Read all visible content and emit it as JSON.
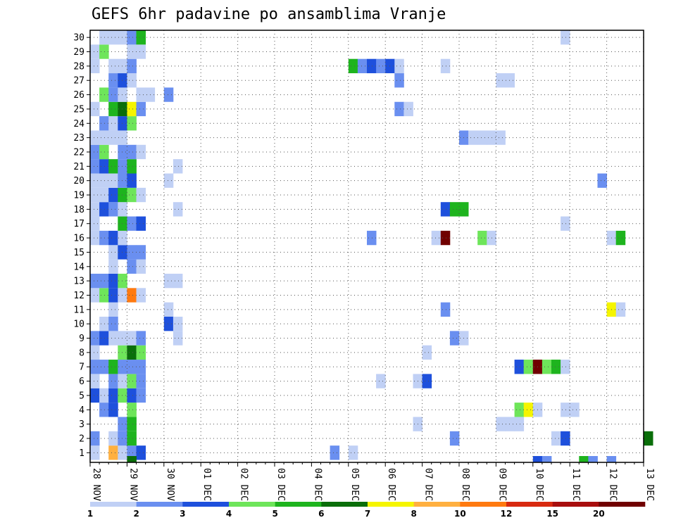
{
  "chart_data": {
    "type": "heatmap",
    "title": "GEFS 6hr padavine po ansamblima Vranje",
    "xlabel": "",
    "ylabel": "",
    "time_step_hours": 6,
    "x_tick_labels": [
      "28 NOV",
      "29 NOV",
      "30 NOV",
      "01 DEC",
      "02 DEC",
      "03 DEC",
      "04 DEC",
      "05 DEC",
      "06 DEC",
      "07 DEC",
      "08 DEC",
      "09 DEC",
      "10 DEC",
      "11 DEC",
      "12 DEC",
      "13 DEC"
    ],
    "x_range_steps": [
      0,
      60
    ],
    "y_range_members": [
      1,
      30
    ],
    "y_tick_labels": [
      "1",
      "2",
      "3",
      "4",
      "5",
      "6",
      "7",
      "8",
      "9",
      "10",
      "11",
      "12",
      "13",
      "14",
      "15",
      "16",
      "17",
      "18",
      "19",
      "20",
      "21",
      "22",
      "23",
      "24",
      "25",
      "26",
      "27",
      "28",
      "29",
      "30"
    ],
    "legend": {
      "colors": [
        "#c0d0f5",
        "#6a8ff0",
        "#1e50dc",
        "#6ee55a",
        "#1eb41e",
        "#0a6e0a",
        "#f5f500",
        "#ffb040",
        "#ff7a10",
        "#d82a10",
        "#a80e0e",
        "#700000"
      ],
      "labels": [
        "1",
        "2",
        "3",
        "4",
        "5",
        "6",
        "7",
        "8",
        "10",
        "12",
        "15",
        "20"
      ]
    },
    "cells": [
      {
        "m": 1,
        "cells": [
          [
            0,
            1
          ],
          [
            2,
            8
          ],
          [
            3,
            1
          ],
          [
            4,
            2
          ],
          [
            5,
            3
          ],
          [
            26,
            2
          ],
          [
            28,
            1
          ]
        ]
      },
      {
        "m": 2,
        "cells": [
          [
            0,
            2
          ],
          [
            2,
            1
          ],
          [
            3,
            2
          ],
          [
            4,
            5
          ],
          [
            39,
            2
          ],
          [
            50,
            1
          ],
          [
            51,
            3
          ],
          [
            60,
            6
          ]
        ]
      },
      {
        "m": 3,
        "cells": [
          [
            3,
            2
          ],
          [
            4,
            5
          ],
          [
            35,
            1
          ],
          [
            44,
            1
          ],
          [
            45,
            1
          ],
          [
            46,
            1
          ]
        ]
      },
      {
        "m": 4,
        "cells": [
          [
            1,
            2
          ],
          [
            2,
            3
          ],
          [
            4,
            4
          ],
          [
            46,
            4
          ],
          [
            47,
            7
          ],
          [
            48,
            1
          ],
          [
            51,
            1
          ],
          [
            52,
            1
          ]
        ]
      },
      {
        "m": 5,
        "cells": [
          [
            0,
            3
          ],
          [
            1,
            1
          ],
          [
            2,
            3
          ],
          [
            3,
            4
          ],
          [
            4,
            3
          ],
          [
            5,
            2
          ]
        ]
      },
      {
        "m": 6,
        "cells": [
          [
            0,
            1
          ],
          [
            2,
            2
          ],
          [
            3,
            1
          ],
          [
            4,
            4
          ],
          [
            5,
            2
          ],
          [
            31,
            1
          ],
          [
            35,
            1
          ],
          [
            36,
            3
          ]
        ]
      },
      {
        "m": 7,
        "cells": [
          [
            0,
            2
          ],
          [
            1,
            2
          ],
          [
            2,
            5
          ],
          [
            3,
            2
          ],
          [
            4,
            2
          ],
          [
            5,
            2
          ],
          [
            46,
            3
          ],
          [
            47,
            4
          ],
          [
            48,
            12
          ],
          [
            49,
            4
          ],
          [
            50,
            5
          ],
          [
            51,
            1
          ]
        ]
      },
      {
        "m": 8,
        "cells": [
          [
            0,
            1
          ],
          [
            3,
            4
          ],
          [
            4,
            6
          ],
          [
            5,
            4
          ],
          [
            36,
            1
          ]
        ]
      },
      {
        "m": 9,
        "cells": [
          [
            0,
            2
          ],
          [
            1,
            3
          ],
          [
            2,
            1
          ],
          [
            3,
            1
          ],
          [
            4,
            1
          ],
          [
            5,
            2
          ],
          [
            9,
            1
          ],
          [
            39,
            2
          ],
          [
            40,
            1
          ]
        ]
      },
      {
        "m": 10,
        "cells": [
          [
            1,
            1
          ],
          [
            2,
            2
          ],
          [
            8,
            3
          ],
          [
            9,
            1
          ]
        ]
      },
      {
        "m": 11,
        "cells": [
          [
            2,
            1
          ],
          [
            8,
            1
          ],
          [
            38,
            2
          ],
          [
            56,
            7
          ],
          [
            57,
            1
          ]
        ]
      },
      {
        "m": 12,
        "cells": [
          [
            0,
            1
          ],
          [
            1,
            4
          ],
          [
            2,
            3
          ],
          [
            3,
            1
          ],
          [
            4,
            9
          ],
          [
            5,
            1
          ]
        ]
      },
      {
        "m": 13,
        "cells": [
          [
            0,
            2
          ],
          [
            1,
            2
          ],
          [
            2,
            3
          ],
          [
            3,
            4
          ],
          [
            8,
            1
          ],
          [
            9,
            1
          ]
        ]
      },
      {
        "m": 14,
        "cells": [
          [
            2,
            1
          ],
          [
            4,
            2
          ],
          [
            5,
            1
          ]
        ]
      },
      {
        "m": 15,
        "cells": [
          [
            2,
            1
          ],
          [
            3,
            3
          ],
          [
            4,
            2
          ],
          [
            5,
            2
          ]
        ]
      },
      {
        "m": 16,
        "cells": [
          [
            0,
            1
          ],
          [
            1,
            2
          ],
          [
            2,
            3
          ],
          [
            3,
            1
          ],
          [
            30,
            2
          ],
          [
            37,
            1
          ],
          [
            38,
            12
          ],
          [
            42,
            4
          ],
          [
            43,
            1
          ],
          [
            56,
            1
          ],
          [
            57,
            5
          ]
        ]
      },
      {
        "m": 17,
        "cells": [
          [
            0,
            1
          ],
          [
            3,
            5
          ],
          [
            4,
            2
          ],
          [
            5,
            3
          ],
          [
            51,
            1
          ]
        ]
      },
      {
        "m": 18,
        "cells": [
          [
            0,
            1
          ],
          [
            1,
            3
          ],
          [
            2,
            2
          ],
          [
            3,
            1
          ],
          [
            9,
            1
          ],
          [
            38,
            3
          ],
          [
            39,
            5
          ],
          [
            40,
            5
          ]
        ]
      },
      {
        "m": 19,
        "cells": [
          [
            0,
            1
          ],
          [
            1,
            1
          ],
          [
            2,
            3
          ],
          [
            3,
            5
          ],
          [
            4,
            4
          ],
          [
            5,
            1
          ]
        ]
      },
      {
        "m": 20,
        "cells": [
          [
            0,
            1
          ],
          [
            1,
            1
          ],
          [
            2,
            1
          ],
          [
            3,
            2
          ],
          [
            4,
            3
          ],
          [
            8,
            1
          ],
          [
            55,
            2
          ]
        ]
      },
      {
        "m": 21,
        "cells": [
          [
            0,
            2
          ],
          [
            1,
            3
          ],
          [
            2,
            5
          ],
          [
            3,
            2
          ],
          [
            4,
            5
          ],
          [
            9,
            1
          ]
        ]
      },
      {
        "m": 22,
        "cells": [
          [
            0,
            2
          ],
          [
            1,
            4
          ],
          [
            3,
            2
          ],
          [
            4,
            2
          ],
          [
            5,
            1
          ]
        ]
      },
      {
        "m": 23,
        "cells": [
          [
            0,
            1
          ],
          [
            1,
            1
          ],
          [
            2,
            1
          ],
          [
            3,
            1
          ],
          [
            40,
            2
          ],
          [
            41,
            1
          ],
          [
            42,
            1
          ],
          [
            43,
            1
          ],
          [
            44,
            1
          ]
        ]
      },
      {
        "m": 24,
        "cells": [
          [
            1,
            2
          ],
          [
            2,
            1
          ],
          [
            3,
            3
          ],
          [
            4,
            4
          ]
        ]
      },
      {
        "m": 25,
        "cells": [
          [
            0,
            1
          ],
          [
            2,
            5
          ],
          [
            3,
            6
          ],
          [
            4,
            7
          ],
          [
            5,
            2
          ],
          [
            33,
            2
          ],
          [
            34,
            1
          ]
        ]
      },
      {
        "m": 26,
        "cells": [
          [
            1,
            4
          ],
          [
            2,
            2
          ],
          [
            3,
            1
          ],
          [
            5,
            1
          ],
          [
            6,
            1
          ],
          [
            8,
            2
          ]
        ]
      },
      {
        "m": 27,
        "cells": [
          [
            2,
            2
          ],
          [
            3,
            3
          ],
          [
            4,
            1
          ],
          [
            33,
            2
          ],
          [
            44,
            1
          ],
          [
            45,
            1
          ]
        ]
      },
      {
        "m": 28,
        "cells": [
          [
            0,
            1
          ],
          [
            2,
            1
          ],
          [
            3,
            1
          ],
          [
            4,
            2
          ],
          [
            28,
            5
          ],
          [
            29,
            2
          ],
          [
            30,
            3
          ],
          [
            31,
            2
          ],
          [
            32,
            3
          ],
          [
            33,
            1
          ],
          [
            38,
            1
          ]
        ]
      },
      {
        "m": 29,
        "cells": [
          [
            0,
            1
          ],
          [
            1,
            4
          ],
          [
            4,
            1
          ],
          [
            5,
            1
          ]
        ]
      },
      {
        "m": 30,
        "cells": [
          [
            1,
            1
          ],
          [
            2,
            1
          ],
          [
            3,
            1
          ],
          [
            4,
            2
          ],
          [
            5,
            5
          ],
          [
            51,
            1
          ]
        ]
      }
    ],
    "bottom_row": [
      [
        4,
        6
      ],
      [
        48,
        3
      ],
      [
        49,
        2
      ],
      [
        53,
        5
      ],
      [
        54,
        2
      ],
      [
        56,
        2
      ]
    ]
  }
}
